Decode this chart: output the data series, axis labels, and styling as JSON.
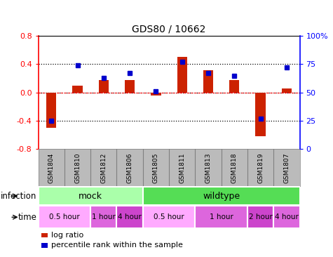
{
  "title": "GDS80 / 10662",
  "samples": [
    "GSM1804",
    "GSM1810",
    "GSM1812",
    "GSM1806",
    "GSM1805",
    "GSM1811",
    "GSM1813",
    "GSM1818",
    "GSM1819",
    "GSM1807"
  ],
  "log_ratio": [
    -0.5,
    0.1,
    0.18,
    0.18,
    -0.04,
    0.5,
    0.32,
    0.18,
    -0.62,
    0.06
  ],
  "percentile": [
    25,
    74,
    63,
    67,
    51,
    77,
    67,
    65,
    27,
    72
  ],
  "ylim": [
    -0.8,
    0.8
  ],
  "yticks_left": [
    -0.8,
    -0.4,
    0.0,
    0.4,
    0.8
  ],
  "yticks_right": [
    0,
    25,
    50,
    75,
    100
  ],
  "hlines_dotted": [
    -0.4,
    0.4
  ],
  "hline_dashed": 0.0,
  "infection_groups": [
    {
      "label": "mock",
      "start": 0,
      "end": 4,
      "color": "#aaffaa"
    },
    {
      "label": "wildtype",
      "start": 4,
      "end": 10,
      "color": "#55dd55"
    }
  ],
  "time_groups": [
    {
      "label": "0.5 hour",
      "start": 0,
      "end": 2,
      "color": "#ffaaff"
    },
    {
      "label": "1 hour",
      "start": 2,
      "end": 3,
      "color": "#dd66dd"
    },
    {
      "label": "4 hour",
      "start": 3,
      "end": 4,
      "color": "#cc44cc"
    },
    {
      "label": "0.5 hour",
      "start": 4,
      "end": 6,
      "color": "#ffaaff"
    },
    {
      "label": "1 hour",
      "start": 6,
      "end": 8,
      "color": "#dd66dd"
    },
    {
      "label": "2 hour",
      "start": 8,
      "end": 9,
      "color": "#cc44cc"
    },
    {
      "label": "4 hour",
      "start": 9,
      "end": 10,
      "color": "#dd66dd"
    }
  ],
  "bar_color": "#cc2200",
  "percentile_color": "#0000cc",
  "gsm_bg": "#bbbbbb",
  "infection_label": "infection",
  "time_label": "time"
}
